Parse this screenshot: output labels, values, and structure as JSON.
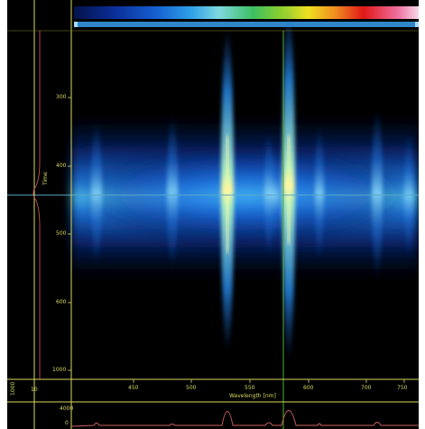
{
  "y_axis": {
    "title": "Time",
    "ticks": [
      "300",
      "400",
      "500",
      "600",
      "1000"
    ]
  },
  "x_axis": {
    "title": "Wavelength [nm]",
    "ticks": [
      "450",
      "500",
      "550",
      "600",
      "700",
      "750"
    ]
  },
  "left_profile_label": "1000",
  "left_profile_tick": "10",
  "bottom_profile_ticks": [
    "4000",
    "0"
  ],
  "colors": {
    "axis_line": "#d8d860",
    "side_profile": "#d06060",
    "cursor_h": "#58a8c8",
    "cursor_v": "#50b030"
  }
}
